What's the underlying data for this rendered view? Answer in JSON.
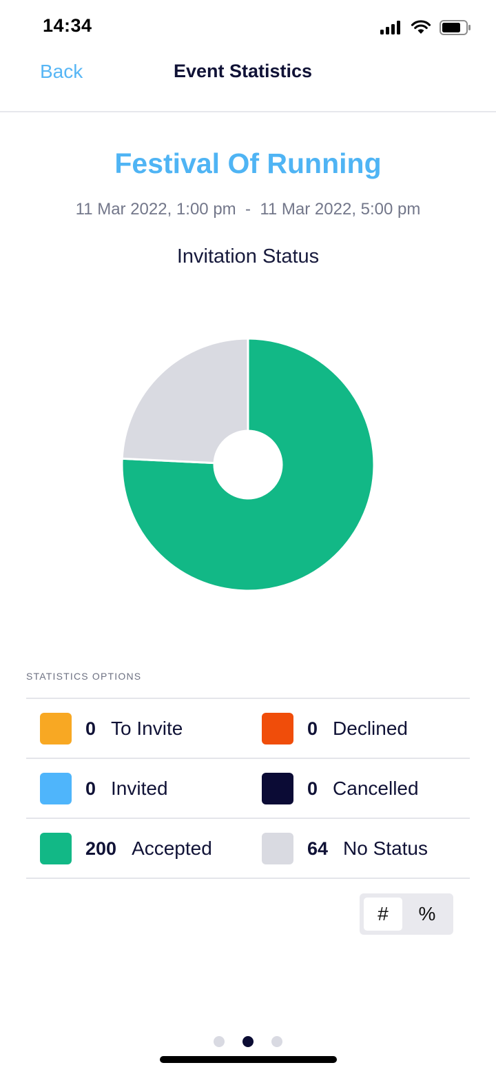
{
  "status_bar": {
    "time": "14:34",
    "icons": [
      "cellular-signal-icon",
      "wifi-icon",
      "battery-icon"
    ]
  },
  "nav": {
    "back_label": "Back",
    "title": "Event Statistics"
  },
  "event": {
    "name": "Festival Of Running",
    "start": "11 Mar 2022, 1:00 pm",
    "separator": "-",
    "end": "11 Mar 2022, 5:00 pm"
  },
  "chart_data": {
    "type": "pie",
    "title": "Invitation Status",
    "categories": [
      "To Invite",
      "Declined",
      "Invited",
      "Cancelled",
      "Accepted",
      "No Status"
    ],
    "values": [
      0,
      0,
      0,
      0,
      200,
      64
    ],
    "colors": [
      "#f8a823",
      "#f04d0a",
      "#4fb5fb",
      "#0b0b35",
      "#12b886",
      "#d9dae1"
    ]
  },
  "statistics": {
    "section_label": "STATISTICS OPTIONS",
    "rows": [
      [
        {
          "count": "0",
          "label": "To Invite",
          "color": "#f8a823"
        },
        {
          "count": "0",
          "label": "Declined",
          "color": "#f04d0a"
        }
      ],
      [
        {
          "count": "0",
          "label": "Invited",
          "color": "#4fb5fb"
        },
        {
          "count": "0",
          "label": "Cancelled",
          "color": "#0b0b35"
        }
      ],
      [
        {
          "count": "200",
          "label": "Accepted",
          "color": "#12b886"
        },
        {
          "count": "64",
          "label": "No Status",
          "color": "#d9dae1"
        }
      ]
    ]
  },
  "display_toggle": {
    "options": [
      "#",
      "%"
    ],
    "selected": "#"
  },
  "pager": {
    "count": 3,
    "active": 1
  }
}
